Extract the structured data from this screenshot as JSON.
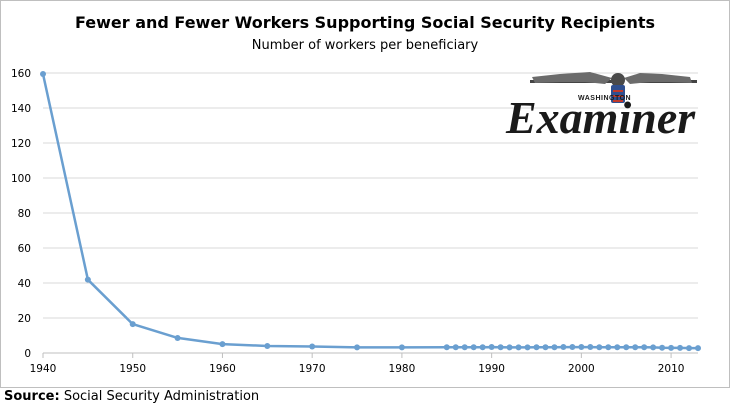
{
  "chart_data": {
    "type": "line",
    "title": "Fewer and Fewer Workers Supporting Social Security Recipients",
    "subtitle": "Number of workers per beneficiary",
    "xlim": [
      1940,
      2013
    ],
    "ylim": [
      0,
      160
    ],
    "x_ticks": [
      "1940",
      "1950",
      "1960",
      "1970",
      "1980",
      "1990",
      "2000",
      "2010"
    ],
    "y_ticks": [
      "0",
      "20",
      "40",
      "60",
      "80",
      "100",
      "120",
      "140",
      "160"
    ],
    "grid": true,
    "color": "#6a9fd0",
    "series": [
      {
        "points": [
          [
            1940,
            159.4
          ],
          [
            1945,
            41.9
          ],
          [
            1950,
            16.5
          ],
          [
            1955,
            8.6
          ],
          [
            1960,
            5.1
          ],
          [
            1965,
            4.0
          ],
          [
            1970,
            3.7
          ],
          [
            1975,
            3.2
          ],
          [
            1980,
            3.2
          ],
          [
            1985,
            3.3
          ],
          [
            1986,
            3.3
          ],
          [
            1987,
            3.3
          ],
          [
            1988,
            3.3
          ],
          [
            1989,
            3.3
          ],
          [
            1990,
            3.4
          ],
          [
            1991,
            3.3
          ],
          [
            1992,
            3.2
          ],
          [
            1993,
            3.2
          ],
          [
            1994,
            3.2
          ],
          [
            1995,
            3.3
          ],
          [
            1996,
            3.3
          ],
          [
            1997,
            3.3
          ],
          [
            1998,
            3.4
          ],
          [
            1999,
            3.4
          ],
          [
            2000,
            3.4
          ],
          [
            2001,
            3.4
          ],
          [
            2002,
            3.3
          ],
          [
            2003,
            3.3
          ],
          [
            2004,
            3.3
          ],
          [
            2005,
            3.3
          ],
          [
            2006,
            3.3
          ],
          [
            2007,
            3.3
          ],
          [
            2008,
            3.2
          ],
          [
            2009,
            3.0
          ],
          [
            2010,
            2.9
          ],
          [
            2011,
            2.9
          ],
          [
            2012,
            2.8
          ],
          [
            2013,
            2.8
          ]
        ]
      }
    ]
  },
  "source": {
    "label": "Source:",
    "text": " Social Security Administration"
  },
  "logo": {
    "top_text": "WASHINGTON",
    "main_text": "Examiner"
  }
}
